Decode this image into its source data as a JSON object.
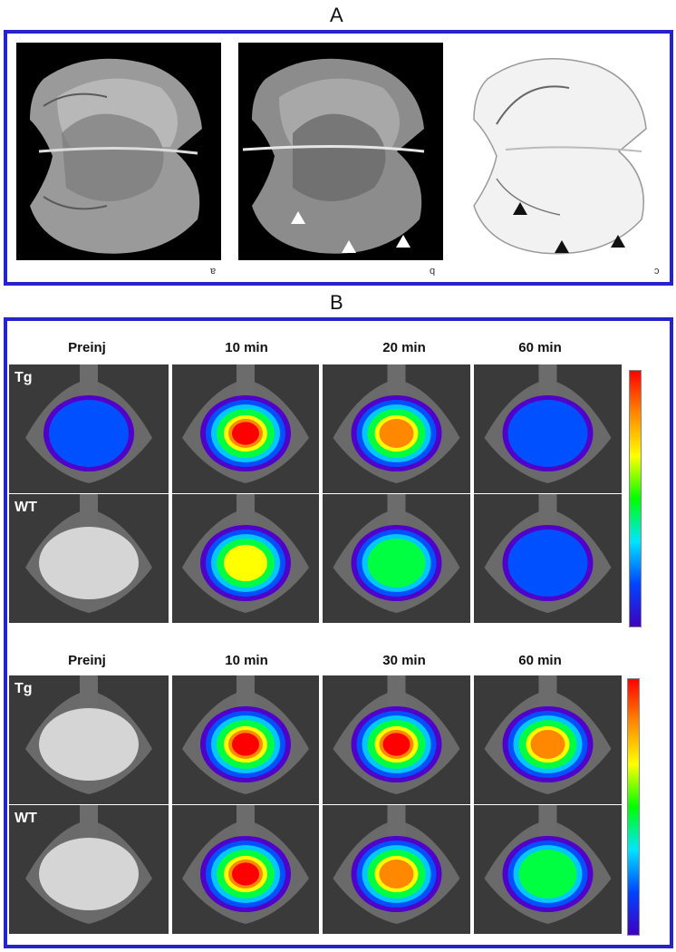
{
  "panel_a": {
    "letter": "A",
    "slices": [
      {
        "label": "a",
        "style": "dark"
      },
      {
        "label": "b",
        "style": "dark"
      },
      {
        "label": "c",
        "style": "inverted"
      }
    ],
    "arrowhead_colors": {
      "b": "#ffffff",
      "c": "#111111"
    }
  },
  "panel_b": {
    "letter": "B",
    "blocks": [
      {
        "columns": [
          "Preinj",
          "10 min",
          "20 min",
          "60 min"
        ],
        "rows": [
          "Tg",
          "WT"
        ],
        "intensity": [
          [
            0.15,
            1.0,
            0.85,
            0.35
          ],
          [
            0.0,
            0.7,
            0.5,
            0.2
          ]
        ]
      },
      {
        "columns": [
          "Preinj",
          "10 min",
          "30 min",
          "60 min"
        ],
        "rows": [
          "Tg",
          "WT"
        ],
        "intensity": [
          [
            0.0,
            1.0,
            0.95,
            0.8
          ],
          [
            0.0,
            1.0,
            0.85,
            0.55
          ]
        ]
      }
    ],
    "colorbar_colors": [
      "#ff0000",
      "#ff8800",
      "#ffff00",
      "#00ff00",
      "#00e5ff",
      "#0044ff",
      "#4000c0"
    ]
  }
}
